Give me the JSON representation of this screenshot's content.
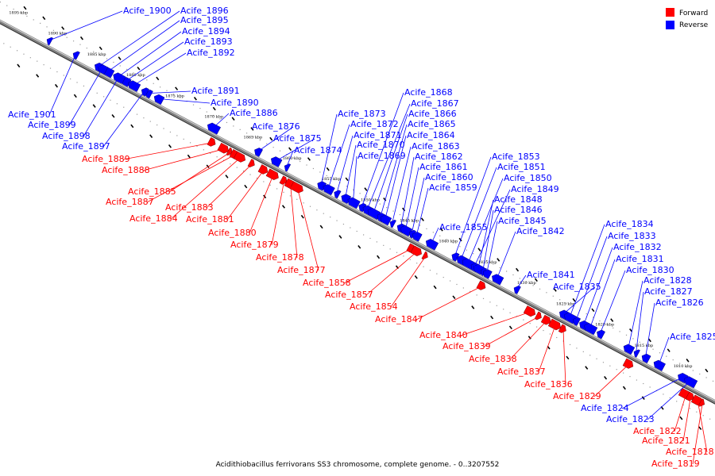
{
  "legend": [
    {
      "label": "Forward",
      "color": "#ff0000"
    },
    {
      "label": "Reverse",
      "color": "#0000ff"
    }
  ],
  "caption": "Acidithiobacillus ferrivorans SS3 chromosome, complete genome. - 0..3207552",
  "colors": {
    "forward": "#ff0000",
    "reverse": "#0000ff",
    "backbone": "#999999"
  },
  "axis": {
    "unit": "kbp",
    "start_kbp": 1895,
    "end_kbp": 1810,
    "ticks_kbp": [
      1895,
      1890,
      1885,
      1880,
      1875,
      1870,
      1865,
      1860,
      1855,
      1850,
      1845,
      1840,
      1835,
      1830,
      1825,
      1820,
      1815,
      1810
    ]
  },
  "genes": [
    {
      "name": "Acife_1900",
      "strand": "reverse",
      "kbp": 1889.6
    },
    {
      "name": "Acife_1896",
      "strand": "reverse",
      "kbp": 1883.3
    },
    {
      "name": "Acife_1895",
      "strand": "reverse",
      "kbp": 1882.1
    },
    {
      "name": "Acife_1894",
      "strand": "reverse",
      "kbp": 1880.8
    },
    {
      "name": "Acife_1893",
      "strand": "reverse",
      "kbp": 1879.8
    },
    {
      "name": "Acife_1892",
      "strand": "reverse",
      "kbp": 1878.8
    },
    {
      "name": "Acife_1891",
      "strand": "reverse",
      "kbp": 1876.9
    },
    {
      "name": "Acife_1890",
      "strand": "reverse",
      "kbp": 1875.6
    },
    {
      "name": "Acife_1886",
      "strand": "reverse",
      "kbp": 1868.6
    },
    {
      "name": "Acife_1876",
      "strand": "reverse",
      "kbp": 1862.9
    },
    {
      "name": "Acife_1875",
      "strand": "reverse",
      "kbp": 1860.6
    },
    {
      "name": "Acife_1874",
      "strand": "reverse",
      "kbp": 1859.2
    },
    {
      "name": "Acife_1873",
      "strand": "reverse",
      "kbp": 1854.8
    },
    {
      "name": "Acife_1872",
      "strand": "reverse",
      "kbp": 1853.9
    },
    {
      "name": "Acife_1871",
      "strand": "reverse",
      "kbp": 1852.8
    },
    {
      "name": "Acife_1870",
      "strand": "reverse",
      "kbp": 1851.7
    },
    {
      "name": "Acife_1869",
      "strand": "reverse",
      "kbp": 1850.7
    },
    {
      "name": "Acife_1868",
      "strand": "reverse",
      "kbp": 1849.6
    },
    {
      "name": "Acife_1867",
      "strand": "reverse",
      "kbp": 1848.9
    },
    {
      "name": "Acife_1866",
      "strand": "reverse",
      "kbp": 1848.1
    },
    {
      "name": "Acife_1865",
      "strand": "reverse",
      "kbp": 1847.2
    },
    {
      "name": "Acife_1864",
      "strand": "reverse",
      "kbp": 1846.6
    },
    {
      "name": "Acife_1863",
      "strand": "reverse",
      "kbp": 1845.7
    },
    {
      "name": "Acife_1862",
      "strand": "reverse",
      "kbp": 1844.6
    },
    {
      "name": "Acife_1861",
      "strand": "reverse",
      "kbp": 1844.0
    },
    {
      "name": "Acife_1860",
      "strand": "reverse",
      "kbp": 1843.2
    },
    {
      "name": "Acife_1859",
      "strand": "reverse",
      "kbp": 1842.6
    },
    {
      "name": "Acife_1855",
      "strand": "reverse",
      "kbp": 1840.7
    },
    {
      "name": "Acife_1853",
      "strand": "reverse",
      "kbp": 1837.7
    },
    {
      "name": "Acife_1851",
      "strand": "reverse",
      "kbp": 1836.9
    },
    {
      "name": "Acife_1850",
      "strand": "reverse",
      "kbp": 1836.0
    },
    {
      "name": "Acife_1849",
      "strand": "reverse",
      "kbp": 1835.2
    },
    {
      "name": "Acife_1848",
      "strand": "reverse",
      "kbp": 1834.7
    },
    {
      "name": "Acife_1846",
      "strand": "reverse",
      "kbp": 1834.1
    },
    {
      "name": "Acife_1845",
      "strand": "reverse",
      "kbp": 1833.6
    },
    {
      "name": "Acife_1842",
      "strand": "reverse",
      "kbp": 1832.3
    },
    {
      "name": "Acife_1841",
      "strand": "reverse",
      "kbp": 1829.8
    },
    {
      "name": "Acife_1835",
      "strand": "reverse",
      "kbp": 1823.8
    },
    {
      "name": "Acife_1834",
      "strand": "reverse",
      "kbp": 1823.0
    },
    {
      "name": "Acife_1833",
      "strand": "reverse",
      "kbp": 1822.2
    },
    {
      "name": "Acife_1832",
      "strand": "reverse",
      "kbp": 1821.2
    },
    {
      "name": "Acife_1831",
      "strand": "reverse",
      "kbp": 1820.4
    },
    {
      "name": "Acife_1830",
      "strand": "reverse",
      "kbp": 1819.1
    },
    {
      "name": "Acife_1828",
      "strand": "reverse",
      "kbp": 1815.5
    },
    {
      "name": "Acife_1827",
      "strand": "reverse",
      "kbp": 1814.5
    },
    {
      "name": "Acife_1826",
      "strand": "reverse",
      "kbp": 1813.3
    },
    {
      "name": "Acife_1825",
      "strand": "reverse",
      "kbp": 1811.6
    },
    {
      "name": "Acife_1901",
      "strand": "reverse",
      "kbp": 1886.2
    },
    {
      "name": "Acife_1899",
      "strand": "reverse",
      "kbp": 1882.8
    },
    {
      "name": "Acife_1898",
      "strand": "reverse",
      "kbp": 1880.7
    },
    {
      "name": "Acife_1897",
      "strand": "reverse",
      "kbp": 1877.4
    },
    {
      "name": "Acife_1824",
      "strand": "reverse",
      "kbp": 1808.6
    },
    {
      "name": "Acife_1823",
      "strand": "reverse",
      "kbp": 1807.6
    },
    {
      "name": "Acife_1889",
      "strand": "forward",
      "kbp": 1867.9
    },
    {
      "name": "Acife_1888",
      "strand": "forward",
      "kbp": 1866.4
    },
    {
      "name": "Acife_1885",
      "strand": "forward",
      "kbp": 1865.6
    },
    {
      "name": "Acife_1887",
      "strand": "forward",
      "kbp": 1865.0
    },
    {
      "name": "Acife_1884",
      "strand": "forward",
      "kbp": 1864.3
    },
    {
      "name": "Acife_1883",
      "strand": "forward",
      "kbp": 1862.8
    },
    {
      "name": "Acife_1881",
      "strand": "forward",
      "kbp": 1861.3
    },
    {
      "name": "Acife_1880",
      "strand": "forward",
      "kbp": 1860.1
    },
    {
      "name": "Acife_1879",
      "strand": "forward",
      "kbp": 1858.7
    },
    {
      "name": "Acife_1878",
      "strand": "forward",
      "kbp": 1857.9
    },
    {
      "name": "Acife_1877",
      "strand": "forward",
      "kbp": 1857.0
    },
    {
      "name": "Acife_1858",
      "strand": "forward",
      "kbp": 1842.4
    },
    {
      "name": "Acife_1857",
      "strand": "forward",
      "kbp": 1841.7
    },
    {
      "name": "Acife_1854",
      "strand": "forward",
      "kbp": 1840.6
    },
    {
      "name": "Acife_1847",
      "strand": "forward",
      "kbp": 1833.4
    },
    {
      "name": "Acife_1840",
      "strand": "forward",
      "kbp": 1827.2
    },
    {
      "name": "Acife_1839",
      "strand": "forward",
      "kbp": 1826.1
    },
    {
      "name": "Acife_1838",
      "strand": "forward",
      "kbp": 1825.1
    },
    {
      "name": "Acife_1837",
      "strand": "forward",
      "kbp": 1824.0
    },
    {
      "name": "Acife_1836",
      "strand": "forward",
      "kbp": 1823.0
    },
    {
      "name": "Acife_1829",
      "strand": "forward",
      "kbp": 1814.6
    },
    {
      "name": "Acife_1822",
      "strand": "forward",
      "kbp": 1807.3
    },
    {
      "name": "Acife_1821",
      "strand": "forward",
      "kbp": 1806.7
    },
    {
      "name": "Acife_1818",
      "strand": "forward",
      "kbp": 1805.8
    },
    {
      "name": "Acife_1819",
      "strand": "forward",
      "kbp": 1805.2
    }
  ]
}
